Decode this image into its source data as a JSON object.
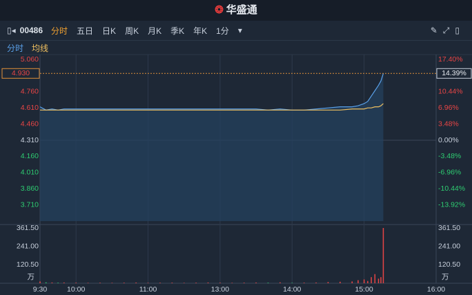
{
  "header": {
    "logo": "华盛通"
  },
  "toolbar": {
    "code": "00486",
    "tabs": [
      "分时",
      "五日",
      "日K",
      "周K",
      "月K",
      "季K",
      "年K",
      "1分"
    ]
  },
  "chart_data": {
    "type": "line",
    "x": [
      0,
      5,
      10,
      15,
      20,
      30,
      40,
      50,
      60,
      70,
      80,
      90,
      100,
      110,
      120,
      130,
      140,
      150,
      160,
      170,
      180,
      190,
      200,
      210,
      220,
      230,
      240,
      250,
      260,
      265,
      270,
      273,
      276,
      279,
      282,
      284,
      286
    ],
    "series": [
      {
        "name": "分时",
        "color": "#5aa0e8",
        "values": [
          4.62,
          4.59,
          4.6,
          4.59,
          4.6,
          4.6,
          4.6,
          4.6,
          4.6,
          4.6,
          4.6,
          4.6,
          4.6,
          4.6,
          4.6,
          4.6,
          4.6,
          4.6,
          4.6,
          4.6,
          4.6,
          4.59,
          4.6,
          4.59,
          4.59,
          4.6,
          4.61,
          4.62,
          4.62,
          4.63,
          4.65,
          4.67,
          4.72,
          4.77,
          4.82,
          4.86,
          4.93
        ]
      },
      {
        "name": "均线",
        "color": "#f0c060",
        "values": [
          4.59,
          4.59,
          4.59,
          4.59,
          4.59,
          4.59,
          4.59,
          4.59,
          4.59,
          4.59,
          4.59,
          4.59,
          4.59,
          4.59,
          4.59,
          4.59,
          4.59,
          4.59,
          4.59,
          4.59,
          4.59,
          4.59,
          4.59,
          4.59,
          4.59,
          4.59,
          4.59,
          4.59,
          4.6,
          4.6,
          4.6,
          4.61,
          4.61,
          4.62,
          4.62,
          4.63,
          4.65
        ]
      }
    ],
    "volume": {
      "values": [
        12,
        6,
        5,
        4,
        5,
        4,
        3,
        4,
        3,
        4,
        5,
        3,
        4,
        4,
        3,
        4,
        5,
        4,
        3,
        4,
        5,
        4,
        6,
        3,
        4,
        5,
        8,
        10,
        12,
        20,
        25,
        15,
        40,
        60,
        30,
        40,
        361.5
      ],
      "ylim": [
        0,
        361.5
      ],
      "yticks": [
        {
          "value": 120.5,
          "label": "120.50"
        },
        {
          "value": 241,
          "label": "241.00"
        },
        {
          "value": 361.5,
          "label": "361.50"
        }
      ],
      "unit": "万"
    },
    "xlim": [
      0,
      330
    ],
    "xticks": [
      {
        "value": 0,
        "label": "9:30"
      },
      {
        "value": 30,
        "label": "10:00"
      },
      {
        "value": 90,
        "label": "11:00"
      },
      {
        "value": 150,
        "label": "13:00"
      },
      {
        "value": 210,
        "label": "14:00"
      },
      {
        "value": 270,
        "label": "15:00"
      },
      {
        "value": 330,
        "label": "16:00"
      }
    ],
    "ylim": [
      3.56,
      5.06
    ],
    "yticks": [
      {
        "value": 5.06,
        "label": "5.060"
      },
      {
        "value": 4.76,
        "label": "4.760"
      },
      {
        "value": 4.61,
        "label": "4.610"
      },
      {
        "value": 4.46,
        "label": "4.460"
      },
      {
        "value": 4.31,
        "label": "4.310"
      },
      {
        "value": 4.16,
        "label": "4.160"
      },
      {
        "value": 4.01,
        "label": "4.010"
      },
      {
        "value": 3.86,
        "label": "3.860"
      },
      {
        "value": 3.71,
        "label": "3.710"
      }
    ],
    "y2lim": [
      -17.4,
      17.4
    ],
    "y2ticks": [
      {
        "value": 17.4,
        "label": "17.40%"
      },
      {
        "value": 10.44,
        "label": "10.44%"
      },
      {
        "value": 6.96,
        "label": "6.96%"
      },
      {
        "value": 3.48,
        "label": "3.48%"
      },
      {
        "value": 0,
        "label": "0.00%"
      },
      {
        "value": -3.48,
        "label": "-3.48%"
      },
      {
        "value": -6.96,
        "label": "-6.96%"
      },
      {
        "value": -10.44,
        "label": "-10.44%"
      },
      {
        "value": -13.92,
        "label": "-13.92%"
      }
    ],
    "last_price": {
      "value": 4.93,
      "label": "4.930",
      "change": "14.39%"
    }
  }
}
